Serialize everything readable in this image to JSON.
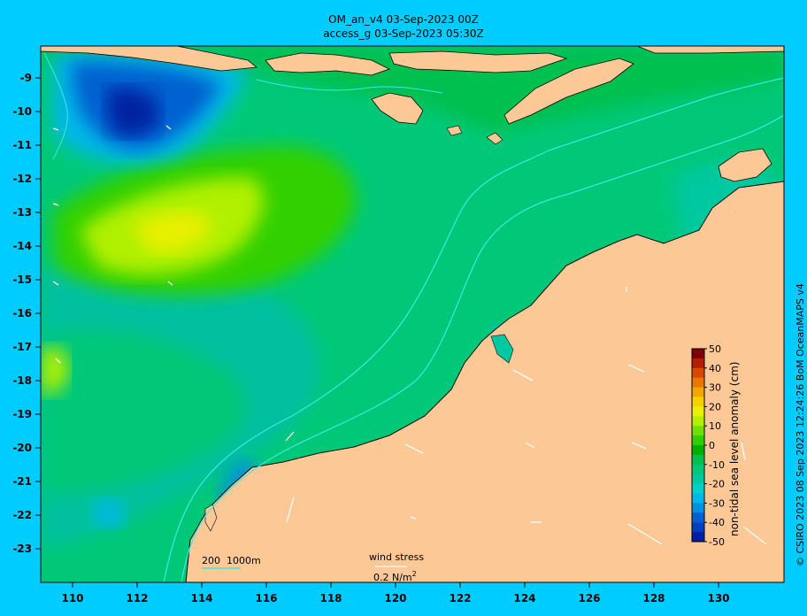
{
  "header": {
    "line1": "OM_an_v4  03-Sep-2023 00Z",
    "line2": "access_g 03-Sep-2023 05:30Z"
  },
  "axes": {
    "lon_ticks": [
      "110",
      "112",
      "114",
      "116",
      "118",
      "120",
      "122",
      "124",
      "126",
      "128",
      "130"
    ],
    "lat_ticks": [
      "-9",
      "-10",
      "-11",
      "-12",
      "-13",
      "-14",
      "-15",
      "-16",
      "-17",
      "-18",
      "-19",
      "-20",
      "-21",
      "-22",
      "-23"
    ]
  },
  "colorbar": {
    "label": "non-tidal sea level anomaly (cm)",
    "ticks": [
      "50",
      "40",
      "30",
      "20",
      "10",
      "0",
      "-10",
      "-20",
      "-30",
      "-40",
      "-50"
    ],
    "colors": [
      "#800000",
      "#b02000",
      "#d84800",
      "#e87800",
      "#f0a800",
      "#f8d000",
      "#e8f000",
      "#b0f000",
      "#70e000",
      "#30d000",
      "#00b000",
      "#00c050",
      "#00c878",
      "#00c8a0",
      "#00d0c8",
      "#00b8e8",
      "#0090e0",
      "#0060d0",
      "#0040c0",
      "#0020a0"
    ]
  },
  "isobath_legend": {
    "label_200": "200",
    "label_1000": "1000m"
  },
  "wind_legend": {
    "title": "wind stress",
    "value": "0.2 N/m",
    "exponent": "2"
  },
  "credit": "© CSIRO 2023   08 Sep 2023 12:24:26 BoM OceanMAPS v4",
  "colors": {
    "land": "#fbc896",
    "frame_bg": "#00ccff",
    "isobath": "#40e8e0"
  }
}
